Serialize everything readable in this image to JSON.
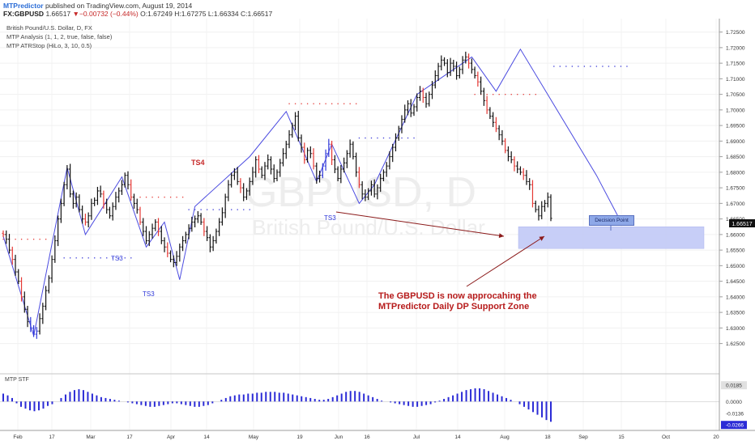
{
  "header": {
    "publisher": "MTPredictor",
    "published_text": "published on TradingView.com, August 19, 2014",
    "symbol": "FX:GBPUSD",
    "last": "1.66517",
    "change": "▼−0.00732 (−0.44%)",
    "open": "O:1.67249",
    "high": "H:1.67275",
    "low": "L:1.66334",
    "close": "C:1.66517"
  },
  "info": {
    "instrument": "British Pound/U.S. Dollar, D, FX",
    "study1": "MTP Analysis (1, 1, 2, true, false, false)",
    "study2": "MTP ATRStop (HiLo, 3, 10, 0.5)"
  },
  "watermark": {
    "symbol": "GBPUSD, D",
    "name": "British Pound/U.S. Dollar"
  },
  "colors": {
    "up_bar": "#111111",
    "down_bar": "#e53935",
    "blue_bar": "#2f38d8",
    "zigzag": "#4a4ae0",
    "support_zone": "#c5ccf7",
    "annotation": "#b71c1c",
    "last_price_bg": "#111111",
    "osc_pos": "#2b2bd6",
    "osc_neg": "#2b2bd6"
  },
  "labels": {
    "ts4": "TS4",
    "ts3_a": "TS3",
    "ts3_b": "TS3",
    "ts3_c": "TS3",
    "decision_point": "Decision Point",
    "annotation_line1": "The GBPUSD is now approcahing the",
    "annotation_line2": "MTPredictor Daily DP Support Zone",
    "osc_title": "MTP STF",
    "last_price_tag": "1.66517"
  },
  "chart_data": [
    {
      "type": "ohlc",
      "title": "British Pound/U.S. Dollar, D, FX",
      "x_tick_labels": [
        "Feb",
        "17",
        "Mar",
        "17",
        "Apr",
        "14",
        "May",
        "19",
        "Jun",
        "16",
        "Jul",
        "14",
        "Aug",
        "18",
        "Sep",
        "15",
        "Oct",
        "20"
      ],
      "y_tick_labels": [
        "1.72500",
        "1.72000",
        "1.71500",
        "1.71000",
        "1.70500",
        "1.70000",
        "1.69500",
        "1.69000",
        "1.68500",
        "1.68000",
        "1.67500",
        "1.67000",
        "1.66500",
        "1.66000",
        "1.65500",
        "1.65000",
        "1.64500",
        "1.64000",
        "1.63500",
        "1.63000",
        "1.62500"
      ],
      "ylim": [
        1.621,
        1.7275
      ],
      "last_price": 1.66517,
      "closes": [
        1.66,
        1.6585,
        1.655,
        1.652,
        1.648,
        1.645,
        1.64,
        1.636,
        1.632,
        1.63,
        1.628,
        1.629,
        1.633,
        1.637,
        1.642,
        1.646,
        1.652,
        1.658,
        1.665,
        1.67,
        1.676,
        1.681,
        1.673,
        1.67,
        1.672,
        1.668,
        1.665,
        1.664,
        1.666,
        1.67,
        1.671,
        1.674,
        1.673,
        1.67,
        1.668,
        1.666,
        1.669,
        1.672,
        1.674,
        1.676,
        1.679,
        1.676,
        1.672,
        1.67,
        1.668,
        1.664,
        1.661,
        1.658,
        1.66,
        1.662,
        1.664,
        1.661,
        1.658,
        1.656,
        1.654,
        1.652,
        1.651,
        1.653,
        1.656,
        1.658,
        1.66,
        1.662,
        1.664,
        1.665,
        1.666,
        1.664,
        1.661,
        1.659,
        1.656,
        1.658,
        1.661,
        1.664,
        1.667,
        1.672,
        1.676,
        1.679,
        1.68,
        1.677,
        1.675,
        1.672,
        1.674,
        1.677,
        1.68,
        1.684,
        1.681,
        1.679,
        1.682,
        1.684,
        1.681,
        1.678,
        1.68,
        1.683,
        1.686,
        1.689,
        1.692,
        1.695,
        1.698,
        1.691,
        1.688,
        1.684,
        1.687,
        1.686,
        1.682,
        1.678,
        1.679,
        1.682,
        1.686,
        1.689,
        1.684,
        1.681,
        1.678,
        1.681,
        1.683,
        1.686,
        1.689,
        1.685,
        1.68,
        1.676,
        1.673,
        1.672,
        1.674,
        1.676,
        1.673,
        1.675,
        1.678,
        1.68,
        1.682,
        1.685,
        1.688,
        1.691,
        1.694,
        1.697,
        1.7,
        1.702,
        1.699,
        1.701,
        1.704,
        1.706,
        1.704,
        1.702,
        1.705,
        1.708,
        1.711,
        1.714,
        1.716,
        1.715,
        1.712,
        1.715,
        1.714,
        1.711,
        1.713,
        1.716,
        1.717,
        1.715,
        1.713,
        1.711,
        1.709,
        1.706,
        1.703,
        1.7,
        1.698,
        1.696,
        1.694,
        1.692,
        1.69,
        1.687,
        1.685,
        1.684,
        1.682,
        1.681,
        1.68,
        1.679,
        1.677,
        1.676,
        1.67,
        1.668,
        1.666,
        1.669,
        1.67,
        1.672,
        1.6652
      ],
      "zigzag_pivots": [
        {
          "bar": 0,
          "price": 1.6595
        },
        {
          "bar": 10,
          "price": 1.6275
        },
        {
          "bar": 21,
          "price": 1.6815
        },
        {
          "bar": 27,
          "price": 1.66
        },
        {
          "bar": 39,
          "price": 1.6785
        },
        {
          "bar": 47,
          "price": 1.656
        },
        {
          "bar": 53,
          "price": 1.664
        },
        {
          "bar": 58,
          "price": 1.6455
        },
        {
          "bar": 63,
          "price": 1.669
        },
        {
          "bar": 81,
          "price": 1.685
        },
        {
          "bar": 93,
          "price": 1.6995
        },
        {
          "bar": 103,
          "price": 1.677
        },
        {
          "bar": 108,
          "price": 1.689
        },
        {
          "bar": 117,
          "price": 1.67
        },
        {
          "bar": 122,
          "price": 1.676
        },
        {
          "bar": 136,
          "price": 1.705
        },
        {
          "bar": 154,
          "price": 1.717
        },
        {
          "bar": 162,
          "price": 1.706
        },
        {
          "bar": 170,
          "price": 1.7195
        },
        {
          "bar": 195,
          "price": 1.679
        },
        {
          "bar": 202,
          "price": 1.666
        }
      ],
      "support_zone": {
        "low": 1.6555,
        "high": 1.6625
      },
      "stop_levels": [
        {
          "from": 0,
          "to": 14,
          "price": 1.6585
        },
        {
          "from": 20,
          "to": 42,
          "price": 1.6525
        },
        {
          "from": 43,
          "to": 60,
          "price": 1.672
        },
        {
          "from": 61,
          "to": 82,
          "price": 1.668
        },
        {
          "from": 94,
          "to": 116,
          "price": 1.702
        },
        {
          "from": 117,
          "to": 135,
          "price": 1.691
        },
        {
          "from": 155,
          "to": 176,
          "price": 1.705
        },
        {
          "from": 181,
          "to": 205,
          "price": 1.714
        }
      ]
    },
    {
      "type": "bar",
      "title": "MTP STF",
      "y_tick_labels": [
        "0.0185",
        "0.0000",
        "-0.0136",
        "-0.0266"
      ],
      "ylim": [
        -0.031,
        0.026
      ],
      "values": [
        0.009,
        0.007,
        0.004,
        -0.002,
        -0.006,
        -0.008,
        -0.01,
        -0.011,
        -0.01,
        -0.008,
        -0.005,
        -0.003,
        0.0,
        0.004,
        0.008,
        0.011,
        0.013,
        0.014,
        0.013,
        0.011,
        0.009,
        0.007,
        0.005,
        0.004,
        0.003,
        0.002,
        0.001,
        0.0,
        -0.001,
        -0.002,
        -0.003,
        -0.004,
        -0.005,
        -0.006,
        -0.006,
        -0.005,
        -0.004,
        -0.003,
        -0.002,
        -0.002,
        -0.003,
        -0.004,
        -0.005,
        -0.006,
        -0.006,
        -0.005,
        -0.004,
        -0.002,
        0.0,
        0.002,
        0.004,
        0.006,
        0.007,
        0.008,
        0.008,
        0.009,
        0.009,
        0.01,
        0.01,
        0.011,
        0.011,
        0.011,
        0.01,
        0.01,
        0.009,
        0.008,
        0.007,
        0.006,
        0.005,
        0.004,
        0.003,
        0.002,
        0.002,
        0.003,
        0.005,
        0.007,
        0.009,
        0.011,
        0.012,
        0.012,
        0.011,
        0.009,
        0.007,
        0.005,
        0.003,
        0.001,
        0.0,
        -0.001,
        -0.002,
        -0.003,
        -0.004,
        -0.005,
        -0.006,
        -0.006,
        -0.005,
        -0.004,
        -0.003,
        -0.001,
        0.001,
        0.003,
        0.005,
        0.007,
        0.009,
        0.011,
        0.013,
        0.014,
        0.015,
        0.015,
        0.014,
        0.012,
        0.01,
        0.008,
        0.006,
        0.004,
        0.002,
        0.0,
        -0.003,
        -0.006,
        -0.009,
        -0.012,
        -0.015,
        -0.018,
        -0.021,
        -0.023
      ]
    }
  ]
}
